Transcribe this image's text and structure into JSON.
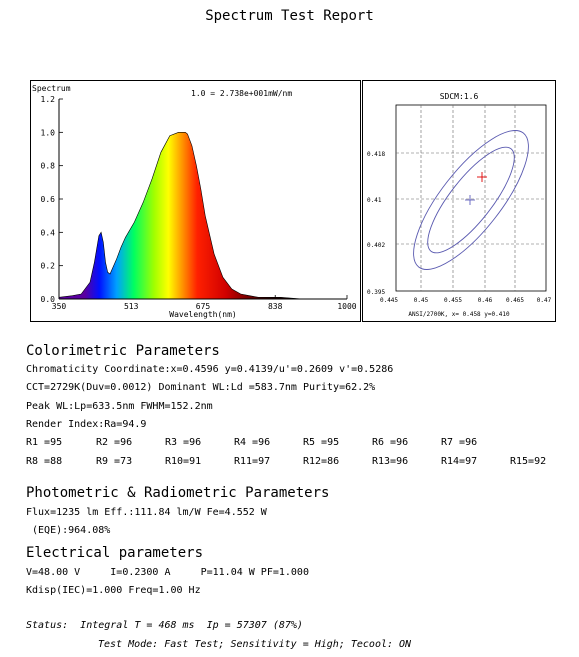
{
  "report_title": "Spectrum Test Report",
  "spectrum_chart": {
    "label": "Spectrum",
    "scale_note": "1.0 = 2.738e+001mW/nm",
    "xlabel": "Wavelength(nm)",
    "y_ticks": [
      "1.2",
      "1.0",
      "0.8",
      "0.6",
      "0.4",
      "0.2",
      "0.0"
    ],
    "x_ticks": [
      "350",
      "513",
      "675",
      "838",
      "1000"
    ]
  },
  "chart_data": {
    "type": "area",
    "xlim": [
      350,
      1000
    ],
    "ylim": [
      0,
      1.2
    ],
    "x": [
      350,
      380,
      400,
      420,
      430,
      440,
      445,
      450,
      455,
      460,
      465,
      470,
      480,
      490,
      500,
      520,
      540,
      560,
      580,
      600,
      620,
      630,
      635,
      640,
      650,
      660,
      670,
      680,
      700,
      720,
      740,
      760,
      780,
      800,
      850,
      900,
      950,
      1000
    ],
    "y": [
      0.01,
      0.02,
      0.03,
      0.1,
      0.22,
      0.38,
      0.4,
      0.34,
      0.22,
      0.16,
      0.15,
      0.18,
      0.24,
      0.31,
      0.37,
      0.46,
      0.58,
      0.72,
      0.88,
      0.98,
      1.0,
      1.0,
      1.0,
      0.99,
      0.92,
      0.8,
      0.66,
      0.5,
      0.27,
      0.13,
      0.06,
      0.03,
      0.02,
      0.01,
      0.01,
      0.0,
      0.0,
      0.0
    ]
  },
  "cie_chart": {
    "title": "SDCM:1.6",
    "y_ticks": [
      "0.418",
      "0.41",
      "0.402",
      "0.395"
    ],
    "x_ticks": [
      "0.445",
      "0.45",
      "0.455",
      "0.46",
      "0.465",
      "0.47"
    ],
    "footer": "ANSI/2700K, x= 0.458 y=0.410"
  },
  "colorimetric": {
    "heading": "Colorimetric Parameters",
    "lines": [
      "Chromaticity Coordinate:x=0.4596  y=0.4139/u'=0.2609 v'=0.5286",
      "CCT=2729K(Duv=0.0012) Dominant WL:Ld =583.7nm Purity=62.2%",
      "Peak WL:Lp=633.5nm  FWHM=152.2nm",
      "Render Index:Ra=94.9"
    ],
    "r_row1": [
      "R1 =95",
      "R2 =96",
      "R3 =96",
      "R4 =96",
      "R5 =95",
      "R6 =96",
      "R7 =96"
    ],
    "r_row2": [
      "R8 =88",
      "R9 =73",
      "R10=91",
      "R11=97",
      "R12=86",
      "R13=96",
      "R14=97",
      "R15=92"
    ]
  },
  "photometric": {
    "heading": "Photometric & Radiometric Parameters",
    "lines": [
      "Flux=1235 lm Eff.:111.84 lm/W  Fe=4.552 W",
      " (EQE):964.08%"
    ]
  },
  "electrical": {
    "heading": "Electrical parameters",
    "lines": [
      "V=48.00 V     I=0.2300 A     P=11.04 W PF=1.000",
      "Kdisp(IEC)=1.000 Freq=1.00 Hz"
    ]
  },
  "status": {
    "line1": "Status:  Integral T = 468 ms  Ip = 57307 (87%)",
    "line2": "Test Mode: Fast Test; Sensitivity = High; Tecool: ON"
  }
}
